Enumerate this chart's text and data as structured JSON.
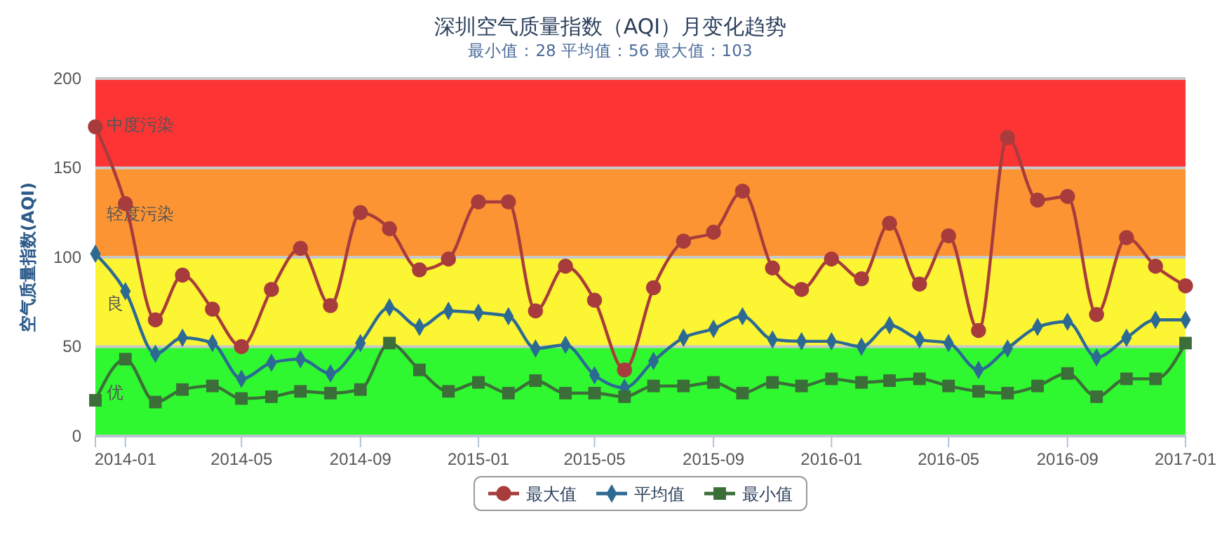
{
  "chart_data": {
    "type": "line",
    "title": "深圳空气质量指数（AQI）月变化趋势",
    "subtitle": "最小值：28 平均值：56 最大值：103",
    "ylabel": "空气质量指数(AQI)",
    "x": [
      "2013-12",
      "2014-01",
      "2014-02",
      "2014-03",
      "2014-04",
      "2014-05",
      "2014-06",
      "2014-07",
      "2014-08",
      "2014-09",
      "2014-10",
      "2014-11",
      "2014-12",
      "2015-01",
      "2015-02",
      "2015-03",
      "2015-04",
      "2015-05",
      "2015-06",
      "2015-07",
      "2015-08",
      "2015-09",
      "2015-10",
      "2015-11",
      "2015-12",
      "2016-01",
      "2016-02",
      "2016-03",
      "2016-04",
      "2016-05",
      "2016-06",
      "2016-07",
      "2016-08",
      "2016-09",
      "2016-10",
      "2016-11",
      "2016-12",
      "2017-01"
    ],
    "series": [
      {
        "name": "最大值",
        "color": "#a83c3c",
        "marker": "circle",
        "values": [
          173,
          130,
          65,
          90,
          71,
          50,
          82,
          105,
          73,
          125,
          116,
          93,
          99,
          131,
          131,
          70,
          95,
          76,
          37,
          83,
          109,
          114,
          137,
          94,
          82,
          99,
          88,
          119,
          85,
          112,
          59,
          167,
          132,
          134,
          68,
          111,
          95,
          84
        ]
      },
      {
        "name": "平均值",
        "color": "#2c6a94",
        "marker": "diamond",
        "values": [
          102,
          81,
          46,
          55,
          52,
          32,
          41,
          43,
          35,
          52,
          72,
          61,
          70,
          69,
          67,
          49,
          51,
          34,
          27,
          42,
          55,
          60,
          67,
          54,
          53,
          53,
          50,
          62,
          54,
          52,
          37,
          49,
          61,
          64,
          44,
          55,
          65,
          65
        ]
      },
      {
        "name": "最小值",
        "color": "#3b6e38",
        "marker": "square",
        "values": [
          20,
          43,
          19,
          26,
          28,
          21,
          22,
          25,
          24,
          26,
          52,
          37,
          25,
          30,
          24,
          31,
          24,
          24,
          22,
          28,
          28,
          30,
          24,
          30,
          28,
          32,
          30,
          31,
          32,
          28,
          25,
          24,
          28,
          35,
          22,
          32,
          32,
          52
        ]
      }
    ],
    "xlim": [
      "2013-12",
      "2017-01"
    ],
    "xticks": [
      "2014-01",
      "2014-05",
      "2014-09",
      "2015-01",
      "2015-05",
      "2015-09",
      "2016-01",
      "2016-05",
      "2016-09",
      "2017-01"
    ],
    "ylim": [
      0,
      200
    ],
    "yticks": [
      0,
      50,
      100,
      150,
      200
    ],
    "bands": [
      {
        "axis": "y",
        "from": 0,
        "to": 50,
        "label": "优",
        "color": "#30f830"
      },
      {
        "axis": "y",
        "from": 50,
        "to": 100,
        "label": "良",
        "color": "#fcf534"
      },
      {
        "axis": "y",
        "from": 100,
        "to": 150,
        "label": "轻度污染",
        "color": "#fc9434"
      },
      {
        "axis": "y",
        "from": 150,
        "to": 200,
        "label": "中度污染",
        "color": "#fc3434"
      }
    ],
    "grid": "y",
    "legend": "bottom"
  }
}
